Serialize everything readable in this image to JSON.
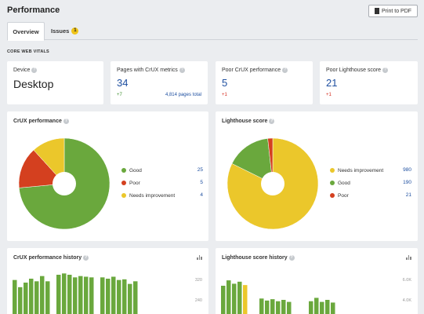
{
  "header": {
    "title": "Performance",
    "print_label": "Print to PDF"
  },
  "tabs": [
    {
      "label": "Overview",
      "active": true
    },
    {
      "label": "Issues",
      "badge": "1"
    }
  ],
  "section_title": "CORE WEB VITALS",
  "metrics": {
    "device": {
      "label": "Device",
      "value": "Desktop"
    },
    "pages_crux": {
      "label": "Pages with CrUX metrics",
      "value": "34",
      "delta": "+7",
      "extra": "4,814 pages total"
    },
    "poor_crux": {
      "label": "Poor CrUX performance",
      "value": "5",
      "delta": "+1"
    },
    "poor_lighthouse": {
      "label": "Poor Lighthouse score",
      "value": "21",
      "delta": "+1"
    }
  },
  "colors": {
    "good": "#6aa83d",
    "poor": "#d4401f",
    "needs": "#ebc72b"
  },
  "crux_card": {
    "title": "CrUX performance",
    "legend": [
      {
        "label": "Good",
        "value": "25"
      },
      {
        "label": "Poor",
        "value": "5"
      },
      {
        "label": "Needs improvement",
        "value": "4"
      }
    ]
  },
  "lighthouse_card": {
    "title": "Lighthouse score",
    "legend": [
      {
        "label": "Needs improvement",
        "value": "980"
      },
      {
        "label": "Good",
        "value": "190"
      },
      {
        "label": "Poor",
        "value": "21"
      }
    ]
  },
  "crux_history": {
    "title": "CrUX performance history",
    "ticks": [
      "320",
      "240"
    ]
  },
  "lighthouse_history": {
    "title": "Lighthouse score history",
    "ticks": [
      "6.0K",
      "4.0K"
    ]
  },
  "chart_data": [
    {
      "type": "pie",
      "title": "CrUX performance",
      "categories": [
        "Good",
        "Poor",
        "Needs improvement"
      ],
      "values": [
        25,
        5,
        4
      ]
    },
    {
      "type": "pie",
      "title": "Lighthouse score",
      "categories": [
        "Needs improvement",
        "Good",
        "Poor"
      ],
      "values": [
        980,
        190,
        21
      ]
    },
    {
      "type": "bar",
      "title": "CrUX performance history",
      "yticks": [
        320,
        240
      ],
      "ylim": [
        0,
        360
      ],
      "values": [
        260,
        205,
        240,
        270,
        250,
        290,
        250,
        0,
        300,
        310,
        300,
        280,
        290,
        285,
        280,
        0,
        280,
        270,
        285,
        260,
        265,
        230,
        250
      ],
      "colors": [
        "good",
        "good",
        "good",
        "good",
        "good",
        "good",
        "good",
        "none",
        "good",
        "good",
        "good",
        "good",
        "good",
        "good",
        "good",
        "none",
        "good",
        "good",
        "good",
        "good",
        "good",
        "good",
        "good"
      ]
    },
    {
      "type": "bar",
      "title": "Lighthouse score history",
      "yticks": [
        "4.0K",
        "6.0K"
      ],
      "ylim": [
        0,
        7000
      ],
      "values": [
        4200,
        5000,
        4500,
        4800,
        4300,
        0,
        0,
        2300,
        2000,
        2200,
        1900,
        2100,
        1800,
        0,
        0,
        0,
        1900,
        2400,
        1800,
        2100,
        1700
      ],
      "colors": [
        "good",
        "good",
        "good",
        "good",
        "needs",
        "none",
        "none",
        "good",
        "good",
        "good",
        "good",
        "good",
        "good",
        "none",
        "none",
        "none",
        "good",
        "good",
        "good",
        "good",
        "good"
      ]
    }
  ]
}
